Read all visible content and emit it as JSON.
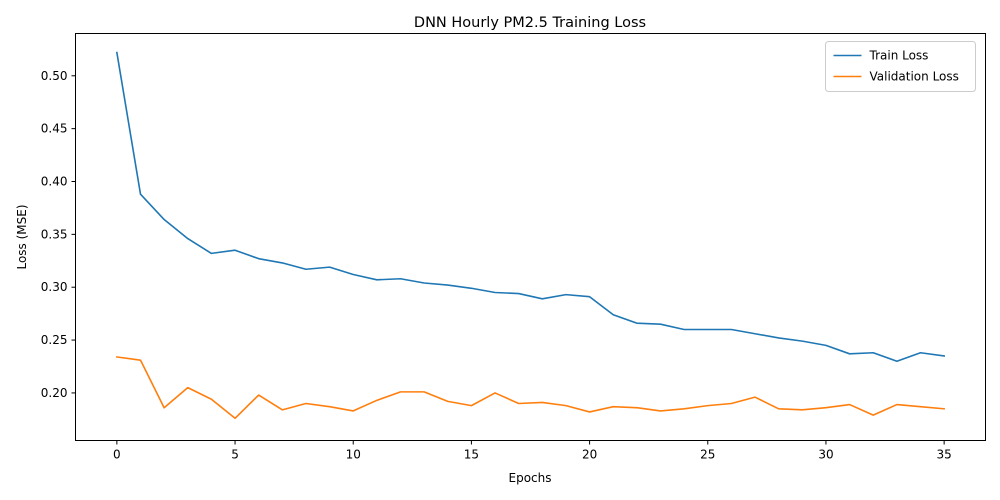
{
  "chart_data": {
    "type": "line",
    "title": "DNN Hourly PM2.5 Training Loss",
    "xlabel": "Epochs",
    "ylabel": "Loss (MSE)",
    "xlim": [
      -1.75,
      36.75
    ],
    "ylim": [
      0.155,
      0.54
    ],
    "xticks": [
      "0",
      "5",
      "10",
      "15",
      "20",
      "25",
      "30",
      "35"
    ],
    "yticks": [
      "0.20",
      "0.25",
      "0.30",
      "0.35",
      "0.40",
      "0.45",
      "0.50"
    ],
    "grid": false,
    "legend_position": "top-right",
    "x": [
      0,
      1,
      2,
      3,
      4,
      5,
      6,
      7,
      8,
      9,
      10,
      11,
      12,
      13,
      14,
      15,
      16,
      17,
      18,
      19,
      20,
      21,
      22,
      23,
      24,
      25,
      26,
      27,
      28,
      29,
      30,
      31,
      32,
      33,
      34,
      35
    ],
    "series": [
      {
        "name": "Train Loss",
        "color": "#1f77b4",
        "values": [
          0.522,
          0.388,
          0.364,
          0.346,
          0.332,
          0.335,
          0.327,
          0.323,
          0.317,
          0.319,
          0.312,
          0.307,
          0.308,
          0.304,
          0.302,
          0.299,
          0.295,
          0.294,
          0.289,
          0.293,
          0.291,
          0.274,
          0.266,
          0.265,
          0.26,
          0.26,
          0.26,
          0.256,
          0.252,
          0.249,
          0.245,
          0.237,
          0.238,
          0.23,
          0.238,
          0.235
        ]
      },
      {
        "name": "Validation Loss",
        "color": "#ff7f0e",
        "values": [
          0.234,
          0.231,
          0.186,
          0.205,
          0.194,
          0.176,
          0.198,
          0.184,
          0.19,
          0.187,
          0.183,
          0.193,
          0.201,
          0.201,
          0.192,
          0.188,
          0.2,
          0.19,
          0.191,
          0.188,
          0.182,
          0.187,
          0.186,
          0.183,
          0.185,
          0.188,
          0.19,
          0.196,
          0.185,
          0.184,
          0.186,
          0.189,
          0.179,
          0.189,
          0.187,
          0.185
        ]
      }
    ]
  }
}
